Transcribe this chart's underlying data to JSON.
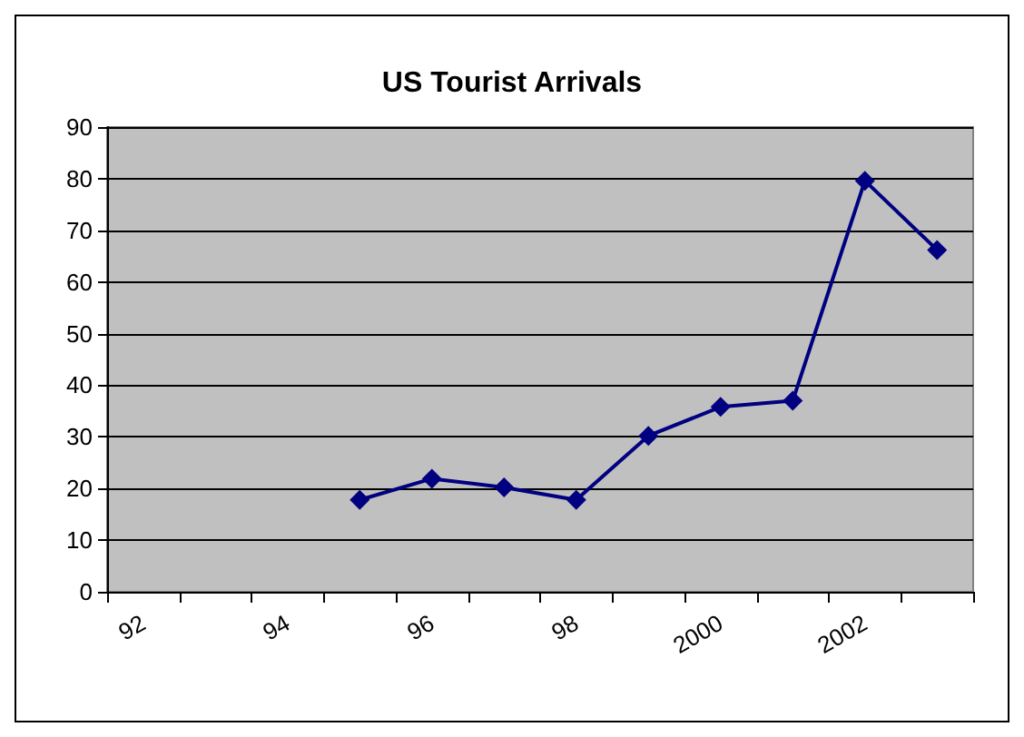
{
  "chart_data": {
    "type": "line",
    "title": "US Tourist Arrivals",
    "categories": [
      "92",
      null,
      "94",
      null,
      "96",
      null,
      "98",
      null,
      "2000",
      null,
      "2002",
      null
    ],
    "series": [
      {
        "color": "#000080",
        "values": [
          null,
          null,
          null,
          17.8,
          21.9,
          20.2,
          17.8,
          30.2,
          35.8,
          37.0,
          79.6,
          66.2
        ]
      }
    ],
    "ylim": [
      0,
      90
    ],
    "yticks": [
      0,
      10,
      20,
      30,
      40,
      50,
      60,
      70,
      80,
      90
    ],
    "grid": "y",
    "marker": "diamond",
    "line_style": "solid"
  }
}
